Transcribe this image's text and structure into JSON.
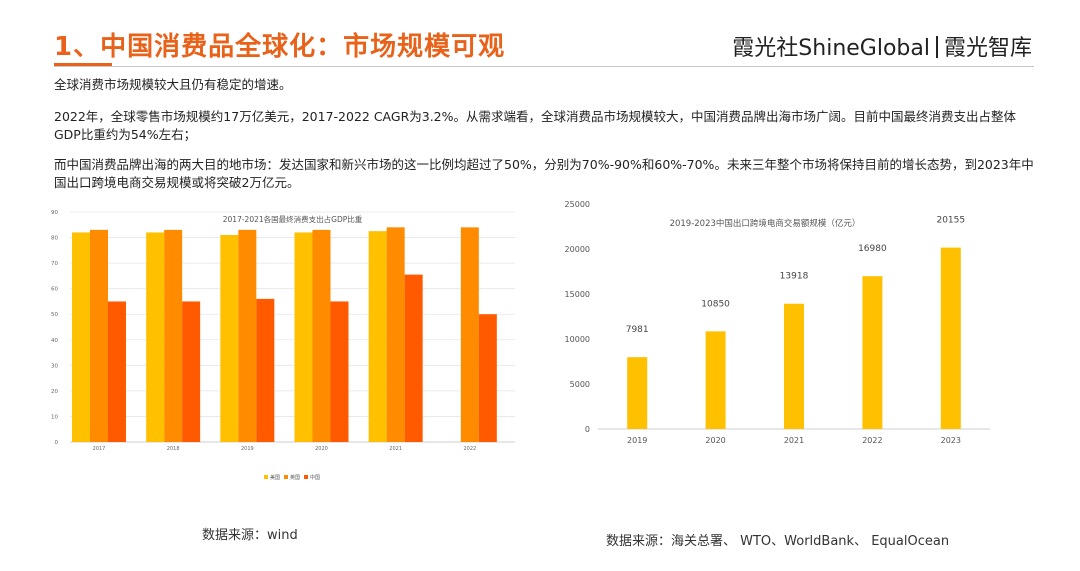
{
  "header": {
    "title": "1、中国消费品全球化：市场规模可观",
    "brand_left": "霞光社",
    "brand_mid": "ShineGlobal",
    "brand_right": "霞光智库"
  },
  "body": {
    "para1": "全球消费市场规模较大且仍有稳定的增速。",
    "para2": "2022年，全球零售市场规模约17万亿美元，2017-2022 CAGR为3.2%。从需求端看，全球消费品市场规模较大，中国消费品牌出海市场广阔。目前中国最终消费支出占整体GDP比重约为54%左右；",
    "para3": "而中国消费品牌出海的两大目的地市场：发达国家和新兴市场的这一比例均超过了50%，分别为70%-90%和60%-70%。未来三年整个市场将保持目前的增长态势，到2023年中国出口跨境电商交易规模或将突破2万亿元。"
  },
  "colors": {
    "accent": "#e8621a",
    "us": "#ffc000",
    "uk": "#ff8c00",
    "cn": "#ff5a00",
    "bar2": "#ffc000"
  },
  "chart_data": [
    {
      "type": "bar",
      "title": "2017-2021各国最终消费支出占GDP比重",
      "categories": [
        "2017",
        "2018",
        "2019",
        "2020",
        "2021",
        "2022"
      ],
      "series": [
        {
          "name": "美国",
          "values": [
            82,
            82,
            81,
            82,
            82.5,
            null
          ]
        },
        {
          "name": "英国",
          "values": [
            83,
            83,
            83,
            83,
            84,
            84
          ]
        },
        {
          "name": "中国",
          "values": [
            55,
            55,
            56,
            55,
            65.5,
            50
          ]
        }
      ],
      "ylim": [
        0,
        90
      ],
      "yticks": [
        "0",
        "10",
        "20",
        "30",
        "40",
        "50",
        "60",
        "70",
        "80",
        "90"
      ],
      "legend": "bottom",
      "source": "数据来源：wind"
    },
    {
      "type": "bar",
      "title": "2019-2023中国出口跨境电商交易额规模（亿元）",
      "categories": [
        "2019",
        "2020",
        "2021",
        "2022",
        "2023"
      ],
      "values": [
        7981,
        10850,
        13918,
        16980,
        20155
      ],
      "value_labels": [
        "7981",
        "10850",
        "13918",
        "16980",
        "20155"
      ],
      "ylim": [
        0,
        25000
      ],
      "yticks": [
        "0",
        "5000",
        "10000",
        "15000",
        "20000",
        "25000"
      ],
      "source": "数据来源：海关总署、 WTO、WorldBank、 EqualOcean"
    }
  ]
}
